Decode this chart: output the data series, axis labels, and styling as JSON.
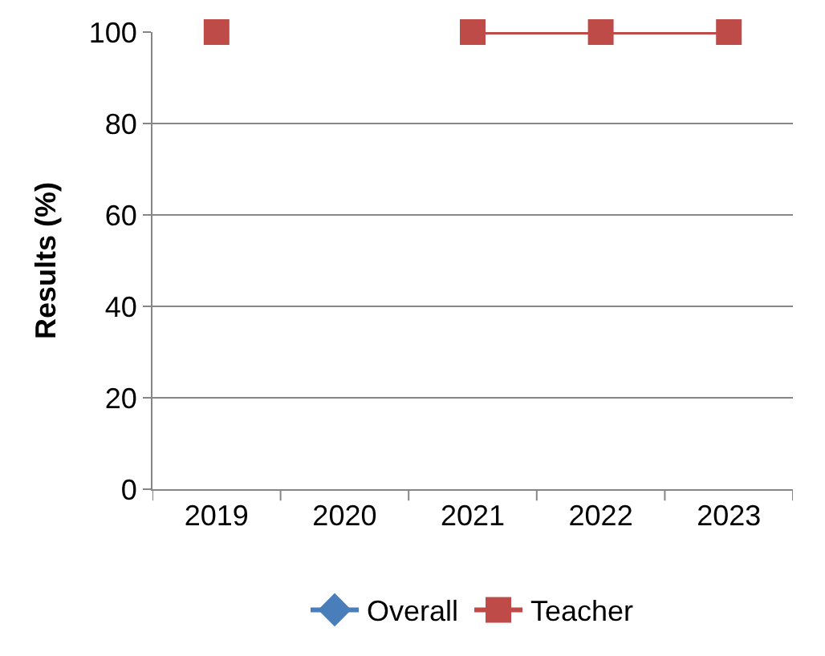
{
  "chart_data": {
    "type": "line",
    "ylabel": "Results (%)",
    "categories": [
      "2019",
      "2020",
      "2021",
      "2022",
      "2023"
    ],
    "series": [
      {
        "name": "Overall",
        "color": "#4a7ebb",
        "marker": "diamond",
        "values": [
          null,
          null,
          null,
          null,
          null
        ]
      },
      {
        "name": "Teacher",
        "color": "#be4b48",
        "marker": "square",
        "values": [
          100,
          null,
          100,
          100,
          100
        ]
      }
    ],
    "ylim": [
      0,
      100
    ],
    "yticks": [
      0,
      20,
      40,
      60,
      80,
      100
    ],
    "grid": "y",
    "legend": "bottom",
    "line_style": "solid"
  }
}
